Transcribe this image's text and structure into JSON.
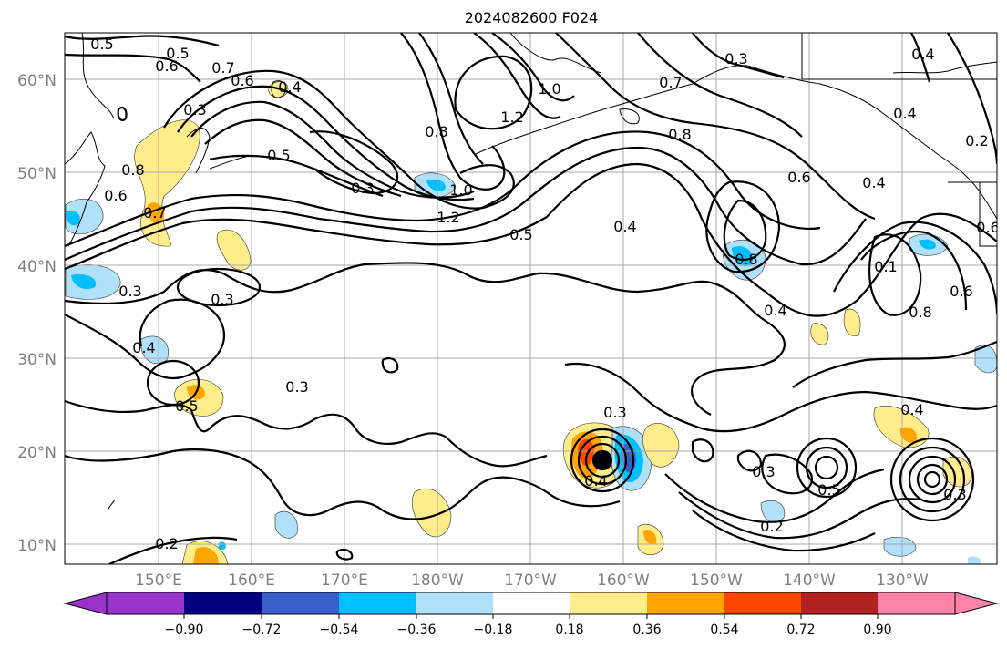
{
  "figure": {
    "title": "2024082600 F024"
  },
  "map": {
    "lat_ticks": [
      "60°N",
      "50°N",
      "40°N",
      "30°N",
      "20°N",
      "10°N"
    ],
    "lon_ticks": [
      "150°E",
      "160°E",
      "170°E",
      "180°W",
      "170°W",
      "160°W",
      "150°W",
      "140°W",
      "130°W"
    ],
    "contour_labels": [
      "0.5",
      "0.5",
      "0.6",
      "0.6",
      "0.7",
      "0.4",
      "0.3",
      "0.5",
      "0.3",
      "0.8",
      "0.6",
      "0.7",
      "0.3",
      "0.3",
      "0.4",
      "0.5",
      "0.3",
      "0.8",
      "1.0",
      "1.2",
      "1.2",
      "1.0",
      "0.5",
      "0.4",
      "0.7",
      "0.8",
      "0.3",
      "0.6",
      "0.8",
      "0.4",
      "0.4",
      "0.4",
      "0.2",
      "0.6",
      "0.1",
      "0.6",
      "0.8",
      "0.4",
      "0.3",
      "0.4",
      "0.3",
      "0.3",
      "0.5",
      "0.4",
      "0.2",
      "0.2"
    ],
    "tc_marker": "cyclone-center-marker"
  },
  "colorbar": {
    "colors": [
      "#9933cc",
      "#000080",
      "#3a5fcd",
      "#00bfff",
      "#b0e0fa",
      "#ffffff",
      "#ffec8b",
      "#ffa500",
      "#ff4500",
      "#b22222",
      "#ff82ab"
    ],
    "tick_labels": [
      "−0.90",
      "−0.72",
      "−0.54",
      "−0.36",
      "−0.18",
      "0.18",
      "0.36",
      "0.54",
      "0.72",
      "0.90"
    ]
  }
}
